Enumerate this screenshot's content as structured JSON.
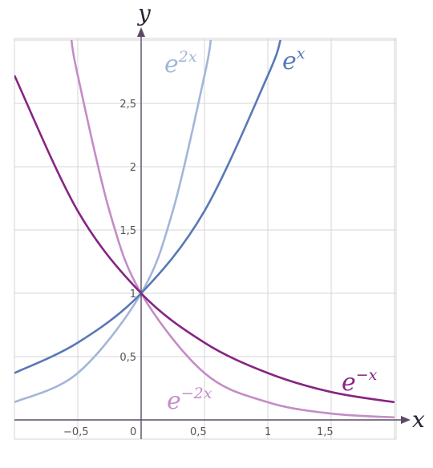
{
  "chart_data": {
    "type": "line",
    "title": "",
    "xlabel": "x",
    "ylabel": "y",
    "xlim": [
      -1,
      2
    ],
    "ylim": [
      -0.05,
      3.1
    ],
    "grid": true,
    "x_ticks": [
      {
        "value": -0.5,
        "label": "−0,5"
      },
      {
        "value": 0,
        "label": "0"
      },
      {
        "value": 0.5,
        "label": "0,5"
      },
      {
        "value": 1,
        "label": "1"
      },
      {
        "value": 1.5,
        "label": "1,5"
      }
    ],
    "y_ticks": [
      {
        "value": 0.5,
        "label": "0,5"
      },
      {
        "value": 1,
        "label": "1"
      },
      {
        "value": 1.5,
        "label": "1,5"
      },
      {
        "value": 2,
        "label": "2"
      },
      {
        "value": 2.5,
        "label": "2,5"
      }
    ],
    "series": [
      {
        "id": "e-x",
        "base": "e",
        "exponent": "x",
        "color": "#5878b8",
        "x": [
          -1.0,
          -0.5,
          0.0,
          0.5,
          1.0,
          1.1
        ],
        "y": [
          0.37,
          0.61,
          1.0,
          1.65,
          2.72,
          3.0
        ]
      },
      {
        "id": "e-2x",
        "base": "e",
        "exponent": "2x",
        "color": "#a3b6d8",
        "x": [
          -1.0,
          -0.5,
          0.0,
          0.25,
          0.5,
          0.55
        ],
        "y": [
          0.14,
          0.37,
          1.0,
          1.65,
          2.72,
          3.0
        ]
      },
      {
        "id": "e-neg-x",
        "base": "e",
        "exponent": "−x",
        "color": "#862583",
        "x": [
          -1.0,
          -0.5,
          0.0,
          0.5,
          1.0,
          1.5,
          2.0
        ],
        "y": [
          2.72,
          1.65,
          1.0,
          0.61,
          0.37,
          0.22,
          0.14
        ]
      },
      {
        "id": "e-neg-2x",
        "base": "e",
        "exponent": "−2x",
        "color": "#c58cc6",
        "x": [
          -0.55,
          -0.5,
          -0.25,
          0.0,
          0.5,
          1.0,
          1.5,
          2.0
        ],
        "y": [
          3.0,
          2.72,
          1.65,
          1.0,
          0.37,
          0.14,
          0.05,
          0.02
        ]
      }
    ]
  }
}
